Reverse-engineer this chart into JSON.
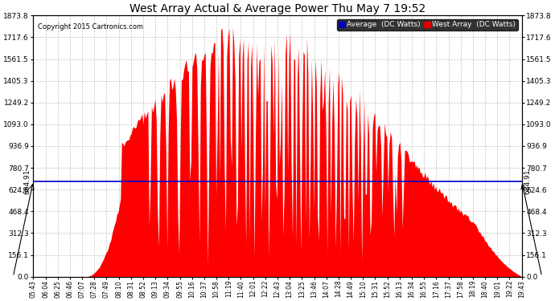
{
  "title": "West Array Actual & Average Power Thu May 7 19:52",
  "copyright": "Copyright 2015 Cartronics.com",
  "legend_labels": [
    "Average  (DC Watts)",
    "West Array  (DC Watts)"
  ],
  "legend_colors": [
    "#0000bb",
    "#dd0000"
  ],
  "average_value": 684.91,
  "ytick_labels": [
    "0.0",
    "156.1",
    "312.3",
    "468.4",
    "624.6",
    "780.7",
    "936.9",
    "1093.0",
    "1249.2",
    "1405.3",
    "1561.5",
    "1717.6",
    "1873.8"
  ],
  "ytick_values": [
    0.0,
    156.1,
    312.3,
    468.4,
    624.6,
    780.7,
    936.9,
    1093.0,
    1249.2,
    1405.3,
    1561.5,
    1717.6,
    1873.8
  ],
  "ymax": 1873.8,
  "background_color": "#ffffff",
  "plot_bg_color": "#ffffff",
  "grid_color": "#bbbbbb",
  "fill_color": "#ff0000",
  "avg_line_color": "#0000cc",
  "xtick_labels": [
    "05:43",
    "06:04",
    "06:25",
    "06:46",
    "07:07",
    "07:28",
    "07:49",
    "08:10",
    "08:31",
    "08:52",
    "09:13",
    "09:34",
    "09:55",
    "10:16",
    "10:37",
    "10:58",
    "11:19",
    "11:40",
    "12:01",
    "12:22",
    "12:43",
    "13:04",
    "13:25",
    "13:46",
    "14:07",
    "14:28",
    "14:49",
    "15:10",
    "15:31",
    "15:52",
    "16:13",
    "16:34",
    "16:55",
    "17:16",
    "17:37",
    "17:58",
    "18:19",
    "18:40",
    "19:01",
    "19:22",
    "19:43"
  ],
  "n_points": 410
}
